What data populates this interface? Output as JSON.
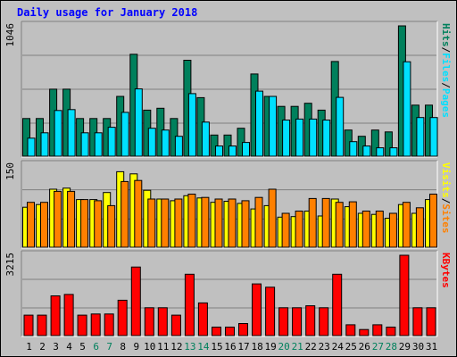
{
  "title": "Daily usage for January 2018",
  "colors": {
    "hits": "#00805c",
    "files": "#00e0ff",
    "sites": "#ff8000",
    "visits": "#ffff00",
    "kbytes": "#ff0000",
    "weekend": "#00805c",
    "weekday": "#000000",
    "background": "#c0c0c0",
    "title": "#0000ff"
  },
  "chart_data": [
    {
      "type": "bar",
      "panel": "hits-files",
      "max_label": "1046",
      "ylim": [
        0,
        1046
      ],
      "side_labels": [
        "Pages",
        "Files",
        "Hits"
      ],
      "categories": [
        "1",
        "2",
        "3",
        "4",
        "5",
        "6",
        "7",
        "8",
        "9",
        "10",
        "11",
        "12",
        "13",
        "14",
        "15",
        "16",
        "17",
        "18",
        "19",
        "20",
        "21",
        "22",
        "23",
        "24",
        "25",
        "26",
        "27",
        "28",
        "29",
        "30",
        "31"
      ],
      "series": [
        {
          "name": "Hits",
          "values": [
            302,
            302,
            538,
            538,
            302,
            302,
            302,
            480,
            818,
            370,
            385,
            302,
            770,
            470,
            170,
            170,
            224,
            660,
            480,
            400,
            400,
            425,
            370,
            760,
            210,
            160,
            210,
            195,
            1046,
            410,
            410
          ]
        },
        {
          "name": "Files",
          "values": [
            145,
            188,
            367,
            374,
            188,
            188,
            232,
            352,
            540,
            224,
            210,
            160,
            502,
            274,
            82,
            82,
            110,
            522,
            480,
            290,
            298,
            298,
            290,
            472,
            117,
            82,
            67,
            67,
            758,
            310,
            310
          ]
        }
      ]
    },
    {
      "type": "bar",
      "panel": "visits-sites",
      "max_label": "150",
      "ylim": [
        0,
        150
      ],
      "side_labels": [
        "Sites",
        "Visits"
      ],
      "categories": [
        "1",
        "2",
        "3",
        "4",
        "5",
        "6",
        "7",
        "8",
        "9",
        "10",
        "11",
        "12",
        "13",
        "14",
        "15",
        "16",
        "17",
        "18",
        "19",
        "20",
        "21",
        "22",
        "23",
        "24",
        "25",
        "26",
        "27",
        "28",
        "29",
        "30",
        "31"
      ],
      "series": [
        {
          "name": "Visits",
          "values": [
            73,
            78,
            106,
            108,
            87,
            87,
            100,
            138,
            134,
            104,
            88,
            85,
            94,
            90,
            82,
            84,
            80,
            70,
            76,
            55,
            56,
            66,
            57,
            88,
            74,
            62,
            60,
            53,
            78,
            62,
            87
          ]
        },
        {
          "name": "Sites",
          "values": [
            82,
            82,
            102,
            102,
            87,
            85,
            76,
            120,
            122,
            88,
            88,
            88,
            97,
            91,
            88,
            88,
            85,
            91,
            106,
            62,
            66,
            89,
            89,
            82,
            83,
            66,
            66,
            62,
            82,
            72,
            97
          ]
        }
      ]
    },
    {
      "type": "bar",
      "panel": "kbytes",
      "max_label": "3215",
      "ylim": [
        0,
        3215
      ],
      "side_labels": [
        "KBytes"
      ],
      "categories": [
        "1",
        "2",
        "3",
        "4",
        "5",
        "6",
        "7",
        "8",
        "9",
        "10",
        "11",
        "12",
        "13",
        "14",
        "15",
        "16",
        "17",
        "18",
        "19",
        "20",
        "21",
        "22",
        "23",
        "24",
        "25",
        "26",
        "27",
        "28",
        "29",
        "30",
        "31"
      ],
      "series": [
        {
          "name": "KBytes",
          "values": [
            818,
            818,
            1588,
            1646,
            818,
            866,
            866,
            1415,
            2742,
            1116,
            1116,
            818,
            2454,
            1308,
            338,
            338,
            482,
            2069,
            1935,
            1116,
            1116,
            1193,
            1116,
            2454,
            434,
            243,
            434,
            338,
            3215,
            1116,
            1116
          ]
        }
      ],
      "weekend_days": [
        6,
        7,
        13,
        14,
        20,
        21,
        27,
        28
      ]
    }
  ]
}
